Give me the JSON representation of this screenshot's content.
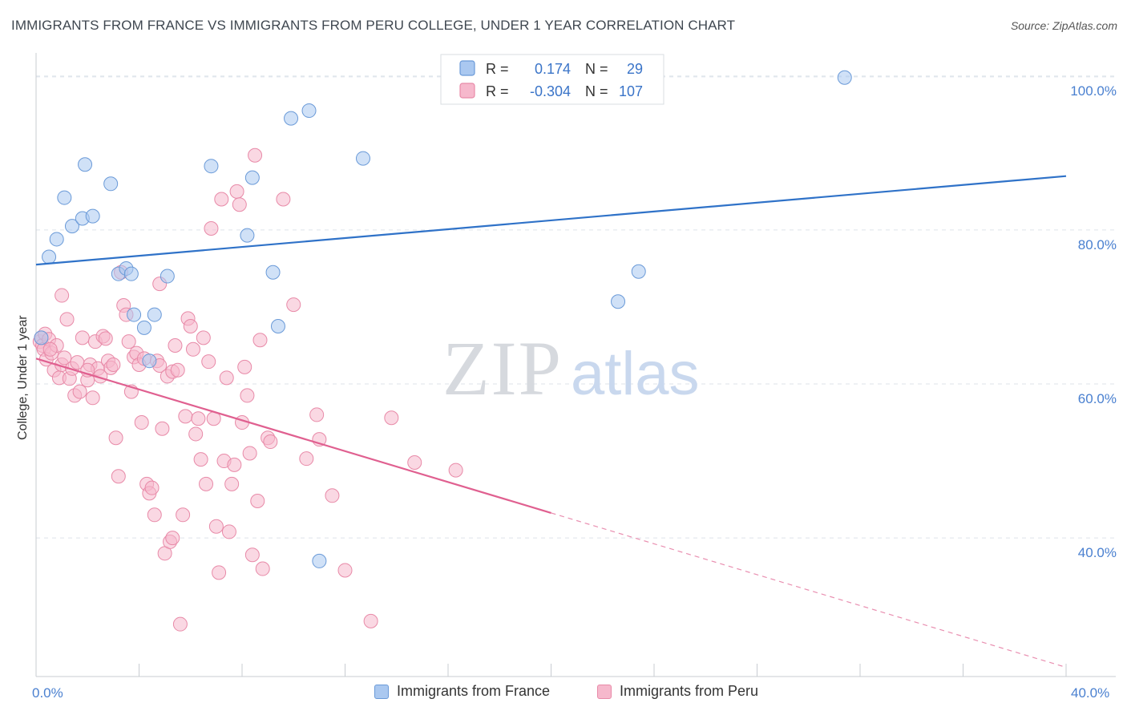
{
  "title": "IMMIGRANTS FROM FRANCE VS IMMIGRANTS FROM PERU COLLEGE, UNDER 1 YEAR CORRELATION CHART",
  "source": "Source: ZipAtlas.com",
  "watermark": {
    "zip": "ZIP",
    "atlas": "atlas"
  },
  "colors": {
    "france_fill": "#aac8f0",
    "france_stroke": "#6a9ad8",
    "france_line": "#2f72c8",
    "peru_fill": "#f6b8cc",
    "peru_stroke": "#e88aa8",
    "peru_line": "#e06090",
    "axis_text": "#4a80d0",
    "grid": "#dde3ea"
  },
  "legend": {
    "france": {
      "r_label": "R =",
      "r_value": "0.174",
      "n_label": "N =",
      "n_value": "29"
    },
    "peru": {
      "r_label": "R =",
      "r_value": "-0.304",
      "n_label": "N =",
      "n_value": "107"
    }
  },
  "bottom_legend": {
    "france": "Immigrants from France",
    "peru": "Immigrants from Peru"
  },
  "chart_data": {
    "type": "scatter",
    "title": "IMMIGRANTS FROM FRANCE VS IMMIGRANTS FROM PERU COLLEGE, UNDER 1 YEAR CORRELATION CHART",
    "xlabel": "",
    "ylabel": "College, Under 1 year",
    "xlim": [
      0,
      40
    ],
    "ylim": [
      22,
      103
    ],
    "x_tick_labels": [
      "0.0%",
      "40.0%"
    ],
    "y_ticks": [
      40,
      60,
      80,
      100
    ],
    "y_tick_labels": [
      "40.0%",
      "60.0%",
      "80.0%",
      "100.0%"
    ],
    "grid": true,
    "series": [
      {
        "name": "Immigrants from France",
        "r": 0.174,
        "n": 29,
        "trend": {
          "x0": 0,
          "y0": 75.5,
          "x1": 40,
          "y1": 87.0,
          "solid_until": 40
        },
        "points": [
          [
            0.2,
            66.0
          ],
          [
            0.5,
            76.5
          ],
          [
            0.8,
            78.8
          ],
          [
            1.1,
            84.2
          ],
          [
            1.4,
            80.5
          ],
          [
            1.8,
            81.5
          ],
          [
            1.9,
            88.5
          ],
          [
            2.2,
            81.8
          ],
          [
            2.9,
            86.0
          ],
          [
            3.2,
            74.3
          ],
          [
            3.5,
            75.0
          ],
          [
            3.7,
            74.3
          ],
          [
            3.8,
            69.0
          ],
          [
            4.2,
            67.3
          ],
          [
            4.4,
            63.0
          ],
          [
            4.6,
            69.0
          ],
          [
            5.1,
            74.0
          ],
          [
            6.8,
            88.3
          ],
          [
            8.2,
            79.3
          ],
          [
            8.4,
            86.8
          ],
          [
            9.2,
            74.5
          ],
          [
            9.4,
            67.5
          ],
          [
            9.9,
            94.5
          ],
          [
            10.6,
            95.5
          ],
          [
            11.0,
            37.0
          ],
          [
            12.7,
            89.3
          ],
          [
            22.6,
            70.7
          ],
          [
            23.4,
            74.6
          ],
          [
            31.4,
            99.8
          ]
        ]
      },
      {
        "name": "Immigrants from Peru",
        "r": -0.304,
        "n": 107,
        "trend": {
          "x0": 0,
          "y0": 63.3,
          "x1": 40,
          "y1": 23.2,
          "solid_until": 20
        },
        "points": [
          [
            0.15,
            65.5
          ],
          [
            0.2,
            66.0
          ],
          [
            0.25,
            65.0
          ],
          [
            0.3,
            64.5
          ],
          [
            0.35,
            66.5
          ],
          [
            0.4,
            63.2
          ],
          [
            0.5,
            65.8
          ],
          [
            0.6,
            64.0
          ],
          [
            0.7,
            61.8
          ],
          [
            0.8,
            65.0
          ],
          [
            0.9,
            60.8
          ],
          [
            1.0,
            62.5
          ],
          [
            1.0,
            71.5
          ],
          [
            1.1,
            63.4
          ],
          [
            1.2,
            68.4
          ],
          [
            1.3,
            60.7
          ],
          [
            1.4,
            62.0
          ],
          [
            1.5,
            58.5
          ],
          [
            1.6,
            62.8
          ],
          [
            1.7,
            59.0
          ],
          [
            1.8,
            66.0
          ],
          [
            2.0,
            60.5
          ],
          [
            2.1,
            62.5
          ],
          [
            2.2,
            58.2
          ],
          [
            2.3,
            65.5
          ],
          [
            2.4,
            62.0
          ],
          [
            2.5,
            61.0
          ],
          [
            2.6,
            66.2
          ],
          [
            2.7,
            65.9
          ],
          [
            2.8,
            63.0
          ],
          [
            2.9,
            62.1
          ],
          [
            3.0,
            62.5
          ],
          [
            3.1,
            53.0
          ],
          [
            3.2,
            48.0
          ],
          [
            3.3,
            74.5
          ],
          [
            3.4,
            70.2
          ],
          [
            3.5,
            69.0
          ],
          [
            3.6,
            65.5
          ],
          [
            3.7,
            59.0
          ],
          [
            3.8,
            63.5
          ],
          [
            3.9,
            64.0
          ],
          [
            4.0,
            62.5
          ],
          [
            4.1,
            55.0
          ],
          [
            4.2,
            63.3
          ],
          [
            4.3,
            47.0
          ],
          [
            4.4,
            45.8
          ],
          [
            4.5,
            46.5
          ],
          [
            4.6,
            43.0
          ],
          [
            4.7,
            63.0
          ],
          [
            4.8,
            62.4
          ],
          [
            4.9,
            54.2
          ],
          [
            5.0,
            38.0
          ],
          [
            5.1,
            61.0
          ],
          [
            5.2,
            39.5
          ],
          [
            5.3,
            61.6
          ],
          [
            5.4,
            65.0
          ],
          [
            5.5,
            61.8
          ],
          [
            5.6,
            28.8
          ],
          [
            5.7,
            43.0
          ],
          [
            5.8,
            55.8
          ],
          [
            5.9,
            68.5
          ],
          [
            6.0,
            67.5
          ],
          [
            6.1,
            64.5
          ],
          [
            6.2,
            53.5
          ],
          [
            6.3,
            55.5
          ],
          [
            6.4,
            50.2
          ],
          [
            6.5,
            66.0
          ],
          [
            6.6,
            47.0
          ],
          [
            6.7,
            62.9
          ],
          [
            6.8,
            80.2
          ],
          [
            6.9,
            55.5
          ],
          [
            7.0,
            41.5
          ],
          [
            7.1,
            35.5
          ],
          [
            7.2,
            84.0
          ],
          [
            7.3,
            50.0
          ],
          [
            7.4,
            60.8
          ],
          [
            7.5,
            40.8
          ],
          [
            7.6,
            47.0
          ],
          [
            7.7,
            49.5
          ],
          [
            7.8,
            85.0
          ],
          [
            7.9,
            83.3
          ],
          [
            8.0,
            55.0
          ],
          [
            8.1,
            62.2
          ],
          [
            8.2,
            58.5
          ],
          [
            8.3,
            51.0
          ],
          [
            8.4,
            37.8
          ],
          [
            8.5,
            89.7
          ],
          [
            8.6,
            44.8
          ],
          [
            8.7,
            65.7
          ],
          [
            8.8,
            36.0
          ],
          [
            9.0,
            53.0
          ],
          [
            9.1,
            52.5
          ],
          [
            9.6,
            84.0
          ],
          [
            10.0,
            70.3
          ],
          [
            10.5,
            50.3
          ],
          [
            10.9,
            56.0
          ],
          [
            11.0,
            52.8
          ],
          [
            11.5,
            45.5
          ],
          [
            12.0,
            35.8
          ],
          [
            13.0,
            29.2
          ],
          [
            13.8,
            55.6
          ],
          [
            14.7,
            49.8
          ],
          [
            16.3,
            48.8
          ],
          [
            4.8,
            73.0
          ],
          [
            5.3,
            40.0
          ],
          [
            2.0,
            61.8
          ],
          [
            0.55,
            64.5
          ]
        ]
      }
    ]
  }
}
